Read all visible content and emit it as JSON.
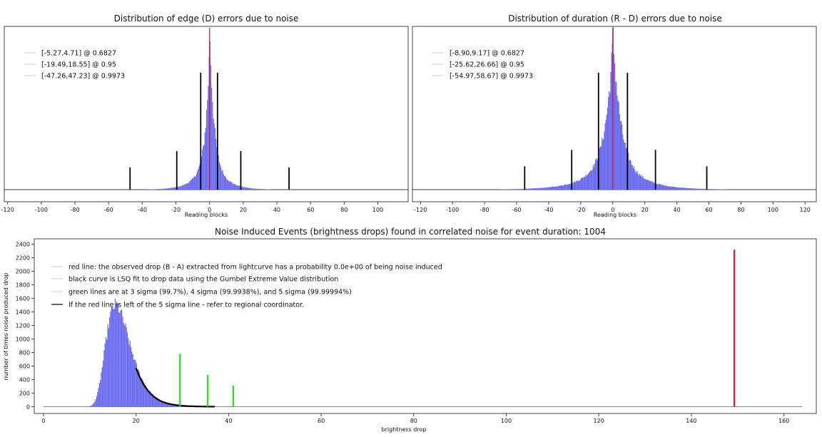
{
  "colors": {
    "histogram": "#6b6bf0",
    "marker": "#d01030",
    "ci_line": "#000000",
    "sigma": "#22dd22",
    "fit": "#000000",
    "frame": "#444444"
  },
  "chart_data": [
    {
      "type": "bar",
      "title": "Distribution of edge (D) errors due to noise",
      "xlabel": "Reading blocks",
      "ylabel": "",
      "xlim": [
        -122,
        118
      ],
      "xticks": [
        -120,
        -100,
        -80,
        -60,
        -40,
        -20,
        0,
        20,
        40,
        60,
        80,
        100
      ],
      "distribution": {
        "center": 0,
        "scale": 2.3,
        "model": "laplace-like"
      },
      "observed_line": 0,
      "intervals": [
        {
          "label": "[-5.27,4.71] @ 0.6827",
          "low": -5.27,
          "high": 4.71,
          "height": 1.0
        },
        {
          "label": "[-19.49,18.55] @ 0.95",
          "low": -19.49,
          "high": 18.55,
          "height": 0.33
        },
        {
          "label": "[-47.26,47.23] @ 0.9973",
          "low": -47.26,
          "high": 47.23,
          "height": 0.19
        }
      ],
      "legend_position": "top-left"
    },
    {
      "type": "bar",
      "title": "Distribution of duration (R - D) errors due to noise",
      "xlabel": "Reading blocks",
      "ylabel": "",
      "xlim": [
        -125,
        127
      ],
      "xticks": [
        -120,
        -100,
        -80,
        -60,
        -40,
        -20,
        0,
        20,
        40,
        60,
        80,
        100,
        120
      ],
      "distribution": {
        "center": 0,
        "scale": 4.5,
        "model": "laplace-like"
      },
      "observed_line": 0,
      "intervals": [
        {
          "label": "[-8.90,9.17] @ 0.6827",
          "low": -8.9,
          "high": 9.17,
          "height": 1.0
        },
        {
          "label": "[-25.62,26.66] @ 0.95",
          "low": -25.62,
          "high": 26.66,
          "height": 0.34
        },
        {
          "label": "[-54.97,58.67] @ 0.9973",
          "low": -54.97,
          "high": 58.67,
          "height": 0.2
        }
      ],
      "legend_position": "top-left"
    },
    {
      "type": "bar",
      "title": "Noise Induced Events (brightness drops) found in correlated noise for event duration: 1004",
      "xlabel": "brightness drop",
      "ylabel": "number of times noise produced drop",
      "xlim": [
        -2,
        167
      ],
      "ylim": [
        -100,
        2480
      ],
      "xticks": [
        0,
        20,
        40,
        60,
        80,
        100,
        120,
        140,
        160
      ],
      "yticks": [
        0,
        200,
        400,
        600,
        800,
        1000,
        1200,
        1400,
        1600,
        1800,
        2000,
        2200,
        2400
      ],
      "histogram": {
        "range": [
          7,
          37
        ],
        "peak_x": 15.5,
        "peak_y": 1500
      },
      "fit_curve": {
        "start": 20,
        "end": 37,
        "start_y": 570
      },
      "observed_drop": {
        "x": 149.3,
        "height": 2320
      },
      "sigma_lines": [
        {
          "x": 29.5,
          "height": 780
        },
        {
          "x": 35.5,
          "height": 470
        },
        {
          "x": 41.0,
          "height": 310
        }
      ],
      "legend": [
        "red line: the observed drop (B - A) extracted from lightcurve has a probability 0.0e+00 of being noise induced",
        "black curve is LSQ fit to drop data using the Gumbel Extreme Value distribution",
        "green lines are at 3 sigma (99.7%), 4 sigma (99.9938%), and 5 sigma (99.99994%)",
        "If the red line is left of the 5 sigma line - refer to regional coordinator."
      ],
      "legend_position": "top-left"
    }
  ]
}
